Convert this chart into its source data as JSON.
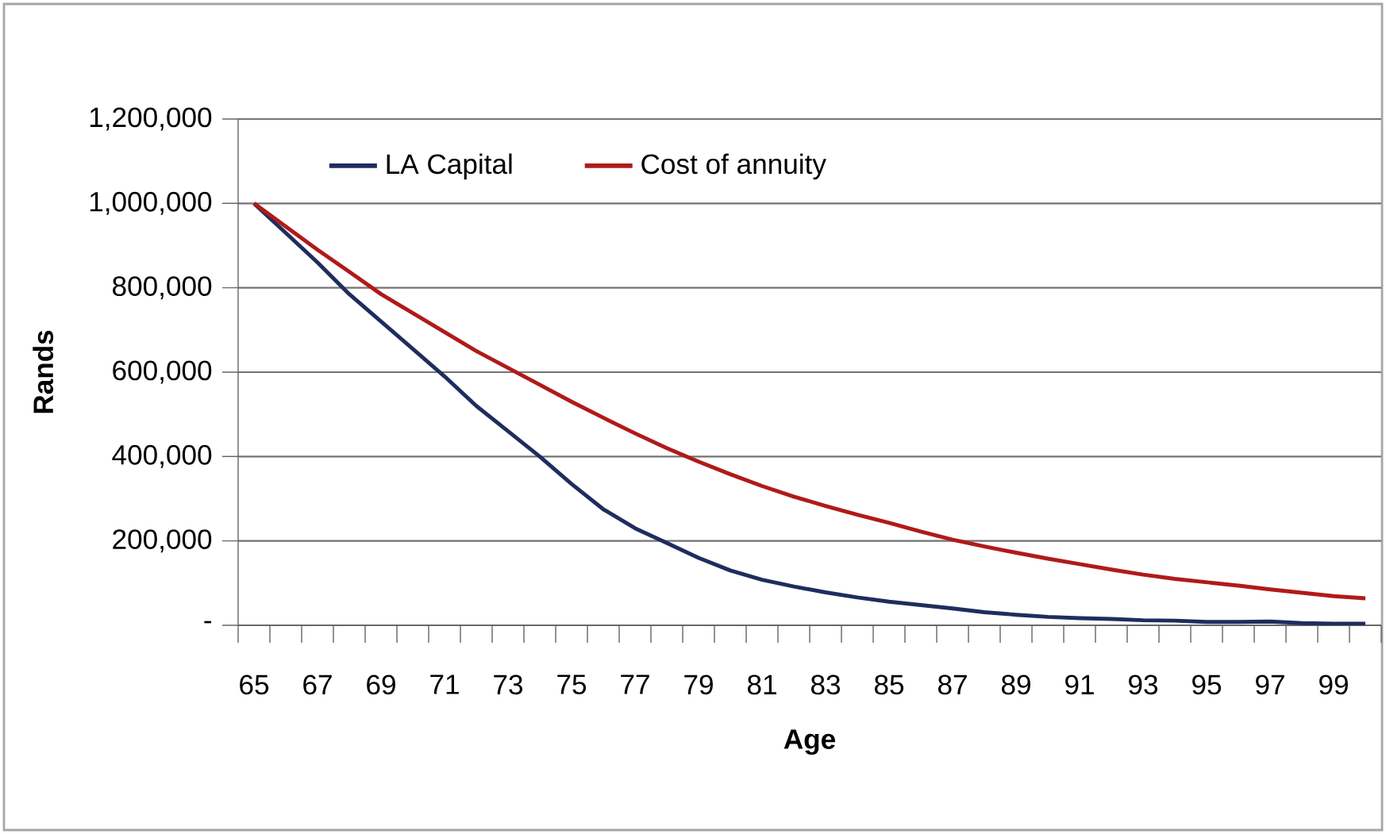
{
  "chart_data": {
    "type": "line",
    "xlabel": "Age",
    "ylabel": "Rands",
    "categories": [
      "65",
      null,
      "67",
      null,
      "69",
      null,
      "71",
      null,
      "73",
      null,
      "75",
      null,
      "77",
      null,
      "79",
      null,
      "81",
      null,
      "83",
      null,
      "85",
      null,
      "87",
      null,
      "89",
      null,
      "91",
      null,
      "93",
      null,
      "95",
      null,
      "97",
      null,
      "99",
      null
    ],
    "series": [
      {
        "name": "LA Capital",
        "color": "#1f2d5e",
        "values": [
          1000000,
          930000,
          860000,
          785000,
          720000,
          655000,
          590000,
          520000,
          460000,
          400000,
          335000,
          275000,
          230000,
          195000,
          160000,
          130000,
          108000,
          92000,
          78000,
          66000,
          56000,
          48000,
          40000,
          31000,
          25000,
          20000,
          17000,
          15000,
          12000,
          11000,
          8000,
          8000,
          9000,
          5000,
          4000,
          4000
        ]
      },
      {
        "name": "Cost of annuity",
        "color": "#b01a1a",
        "values": [
          1000000,
          945000,
          890000,
          838000,
          785000,
          740000,
          695000,
          650000,
          610000,
          570000,
          530000,
          492000,
          455000,
          420000,
          388000,
          358000,
          330000,
          305000,
          283000,
          262000,
          243000,
          222000,
          203000,
          187000,
          172000,
          158000,
          145000,
          132000,
          120000,
          110000,
          102000,
          94000,
          85000,
          77000,
          69000,
          64000
        ]
      }
    ],
    "ylim": [
      0,
      1200000
    ],
    "yticks": [
      {
        "value": 0,
        "label": "-"
      },
      {
        "value": 200000,
        "label": "200,000"
      },
      {
        "value": 400000,
        "label": "400,000"
      },
      {
        "value": 600000,
        "label": "600,000"
      },
      {
        "value": 800000,
        "label": "800,000"
      },
      {
        "value": 1000000,
        "label": "1,000,000"
      },
      {
        "value": 1200000,
        "label": "1,200,000"
      }
    ],
    "grid": "y",
    "legend": "top left",
    "marker": "none",
    "line_style": "solid"
  }
}
